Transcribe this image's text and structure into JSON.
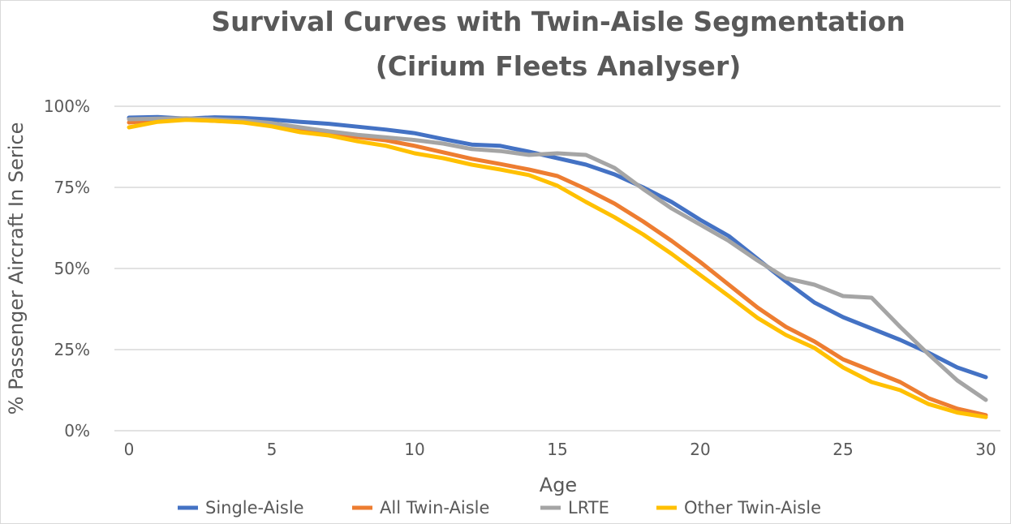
{
  "chart_data": {
    "type": "line",
    "title": "Survival Curves with Twin-Aisle Segmentation",
    "subtitle": "(Cirium Fleets Analyser)",
    "xlabel": "Age",
    "ylabel": "% Passenger Aircraft In Serice",
    "x": [
      0,
      1,
      2,
      3,
      4,
      5,
      6,
      7,
      8,
      9,
      10,
      11,
      12,
      13,
      14,
      15,
      16,
      17,
      18,
      19,
      20,
      21,
      22,
      23,
      24,
      25,
      26,
      27,
      28,
      29,
      30
    ],
    "xlim": [
      0,
      30
    ],
    "ylim": [
      0,
      100
    ],
    "x_ticks": [
      "0",
      "5",
      "10",
      "15",
      "20",
      "25",
      "30"
    ],
    "y_ticks": [
      "0%",
      "25%",
      "50%",
      "75%",
      "100%"
    ],
    "grid": "horizontal",
    "legend_position": "bottom",
    "series": [
      {
        "name": "Single-Aisle",
        "color": "#4472C4",
        "values": [
          96.5,
          96.7,
          96.2,
          96.6,
          96.4,
          95.9,
          95.2,
          94.6,
          93.7,
          92.8,
          91.7,
          89.9,
          88.2,
          87.8,
          86.0,
          84.0,
          82.0,
          79.0,
          75.0,
          70.5,
          65.0,
          60.0,
          53.0,
          46.0,
          39.5,
          35.0,
          31.5,
          28.0,
          24.0,
          19.5,
          16.5
        ]
      },
      {
        "name": "All Twin-Aisle",
        "color": "#ED7D31",
        "values": [
          95.0,
          95.7,
          96.0,
          95.5,
          95.2,
          94.5,
          92.8,
          91.5,
          90.5,
          89.5,
          87.8,
          85.8,
          83.8,
          82.2,
          80.5,
          78.5,
          74.5,
          70.0,
          64.5,
          58.5,
          52.0,
          45.0,
          38.0,
          32.0,
          27.5,
          22.0,
          18.5,
          15.0,
          10.0,
          6.8,
          4.8
        ]
      },
      {
        "name": "LRTE",
        "color": "#A5A5A5",
        "values": [
          96.0,
          96.2,
          96.3,
          96.0,
          95.6,
          94.8,
          93.5,
          92.3,
          91.2,
          90.4,
          89.6,
          88.5,
          86.8,
          86.2,
          85.0,
          85.5,
          85.0,
          81.0,
          74.5,
          68.5,
          63.5,
          58.5,
          52.5,
          47.0,
          45.0,
          41.5,
          41.0,
          32.0,
          23.5,
          15.5,
          9.5
        ]
      },
      {
        "name": "Other Twin-Aisle",
        "color": "#FFC000",
        "values": [
          93.5,
          95.2,
          95.8,
          95.5,
          95.0,
          93.8,
          92.0,
          91.0,
          89.2,
          87.8,
          85.5,
          84.0,
          82.0,
          80.5,
          78.8,
          75.5,
          70.5,
          65.8,
          60.5,
          54.5,
          48.0,
          41.5,
          34.8,
          29.5,
          25.5,
          19.5,
          15.0,
          12.5,
          8.2,
          5.6,
          4.2
        ]
      }
    ]
  }
}
